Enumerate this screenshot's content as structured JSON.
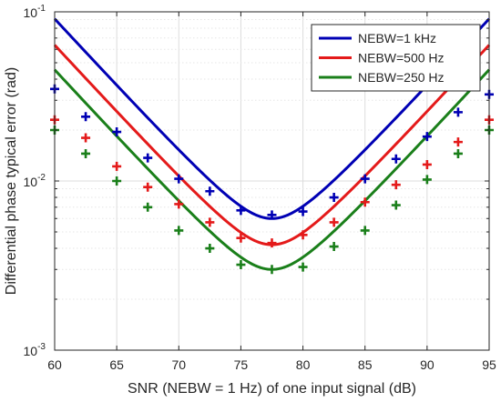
{
  "chart_data": {
    "type": "line",
    "title": "",
    "xlabel": "SNR (NEBW = 1 Hz) of one input signal (dB)",
    "ylabel": "Differential phase typical error (rad)",
    "xlim": [
      60,
      95
    ],
    "ylim": [
      0.001,
      0.1
    ],
    "yscale": "log",
    "grid": true,
    "minor_grid": true,
    "legend_position": "top-right",
    "x_ticks": [
      {
        "value": 60,
        "label": "60"
      },
      {
        "value": 65,
        "label": "65"
      },
      {
        "value": 70,
        "label": "70"
      },
      {
        "value": 75,
        "label": "75"
      },
      {
        "value": 80,
        "label": "80"
      },
      {
        "value": 85,
        "label": "85"
      },
      {
        "value": 90,
        "label": "90"
      },
      {
        "value": 95,
        "label": "95"
      }
    ],
    "y_ticks": [
      {
        "value": 0.001,
        "base": "10",
        "exp": "-3"
      },
      {
        "value": 0.01,
        "base": "10",
        "exp": "-2"
      },
      {
        "value": 0.1,
        "base": "10",
        "exp": "-1"
      }
    ],
    "series": [
      {
        "name": "NEBW=1 kHz",
        "color": "#0000b4",
        "fit": {
          "x0": 77.5,
          "ymin": 0.006,
          "slope": 0.08
        },
        "markers": {
          "x": [
            60,
            62.5,
            65,
            67.5,
            70,
            72.5,
            75,
            77.5,
            80,
            82.5,
            85,
            87.5,
            90,
            92.5,
            95
          ],
          "y": [
            0.035,
            0.024,
            0.0195,
            0.0137,
            0.0103,
            0.0087,
            0.0067,
            0.0063,
            0.0066,
            0.008,
            0.0103,
            0.0135,
            0.0183,
            0.0255,
            0.0325
          ]
        }
      },
      {
        "name": "NEBW=500 Hz",
        "color": "#e41a1a",
        "fit": {
          "x0": 77.5,
          "ymin": 0.0042,
          "slope": 0.08
        },
        "markers": {
          "x": [
            60,
            62.5,
            65,
            67.5,
            70,
            72.5,
            75,
            77.5,
            80,
            82.5,
            85,
            87.5,
            90,
            92.5,
            95
          ],
          "y": [
            0.023,
            0.018,
            0.0122,
            0.0092,
            0.0073,
            0.0057,
            0.0046,
            0.0043,
            0.0048,
            0.0057,
            0.0075,
            0.0095,
            0.0125,
            0.017,
            0.023
          ]
        }
      },
      {
        "name": "NEBW=250 Hz",
        "color": "#1a7f1a",
        "fit": {
          "x0": 77.5,
          "ymin": 0.003,
          "slope": 0.08
        },
        "markers": {
          "x": [
            60,
            62.5,
            65,
            67.5,
            70,
            72.5,
            75,
            77.5,
            80,
            82.5,
            85,
            87.5,
            90,
            92.5,
            95
          ],
          "y": [
            0.02,
            0.0145,
            0.01,
            0.007,
            0.0051,
            0.004,
            0.0032,
            0.003,
            0.0031,
            0.0041,
            0.0051,
            0.0072,
            0.0102,
            0.0145,
            0.02
          ]
        }
      }
    ]
  }
}
